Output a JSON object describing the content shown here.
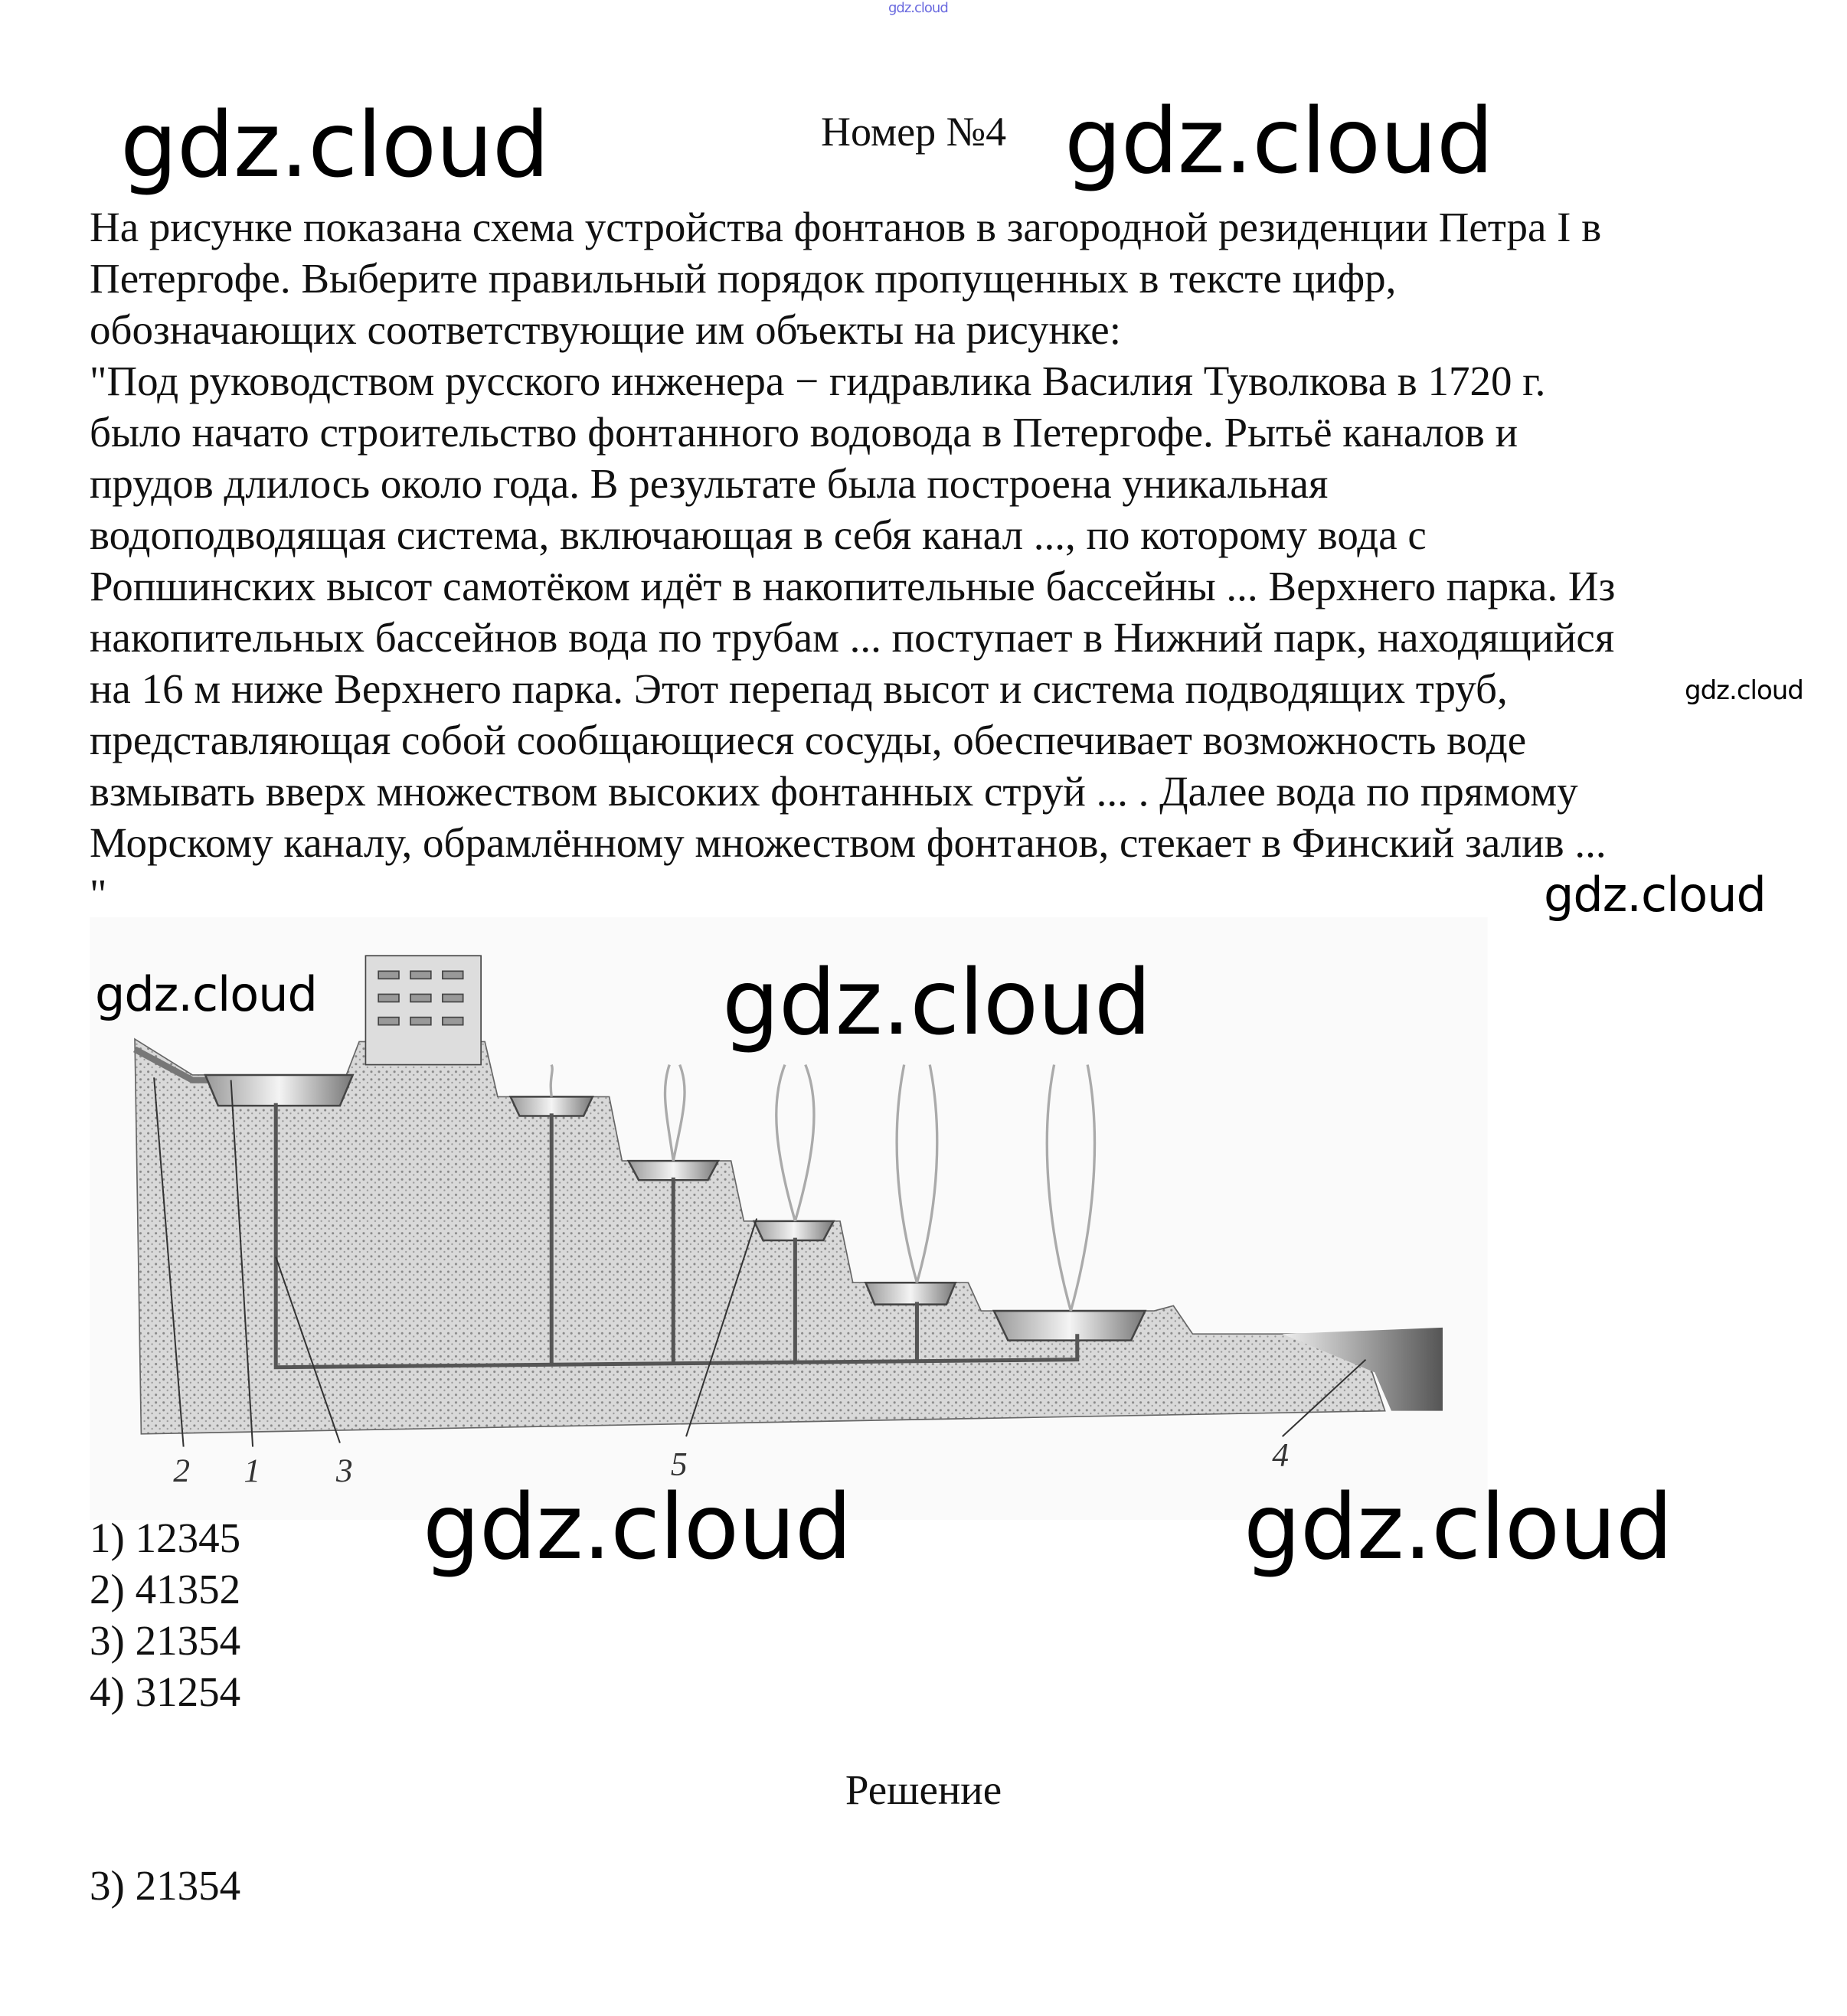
{
  "watermarks": {
    "top_small": "gdz.cloud",
    "header_left": "gdz.cloud",
    "header_right": "gdz.cloud",
    "text_small": "gdz.cloud",
    "text_right": "gdz.cloud",
    "figure_left": "gdz.cloud",
    "figure_center": "gdz.cloud",
    "options_center": "gdz.cloud",
    "options_right": "gdz.cloud"
  },
  "header": {
    "title": "Номер №4"
  },
  "question": {
    "lines": [
      "На рисунке показана схема устройства фонтанов в загородной резиденции Петра I в",
      "Петергофе. Выберите правильный порядок пропущенных в тексте цифр,",
      "обозначающих соответствующие им объекты на рисунке:",
      "\"Под руководством русского инженера − гидравлика Василия Туволкова в 1720 г.",
      "было начато строительство фонтанного водовода в Петергофе. Рытьё каналов и",
      "прудов длилось около года. В результате была построена уникальная",
      "водоподводящая система, включающая в себя канал ..., по которому вода с",
      "Ропшинских высот самотёком идёт в накопительные бассейны ... Верхнего парка. Из",
      "накопительных бассейнов вода по трубам ... поступает в Нижний парк, находящийся",
      "на 16 м ниже Верхнего парка. Этот перепад высот и система подводящих труб,",
      "представляющая собой сообщающиеся сосуды, обеспечивает возможность воде",
      "взмывать вверх множеством высоких фонтанных струй ... . Далее вода по прямому",
      "Морскому каналу, обрамлённому множеством фонтанов, стекает в Финский залив ...",
      "\""
    ]
  },
  "figure": {
    "labels": [
      "2",
      "1",
      "3",
      "5",
      "4"
    ]
  },
  "options": [
    "1) 12345",
    "2) 41352",
    "3) 21354",
    "4) 31254"
  ],
  "solution": {
    "heading": "Решение",
    "answer": "3) 21354"
  }
}
